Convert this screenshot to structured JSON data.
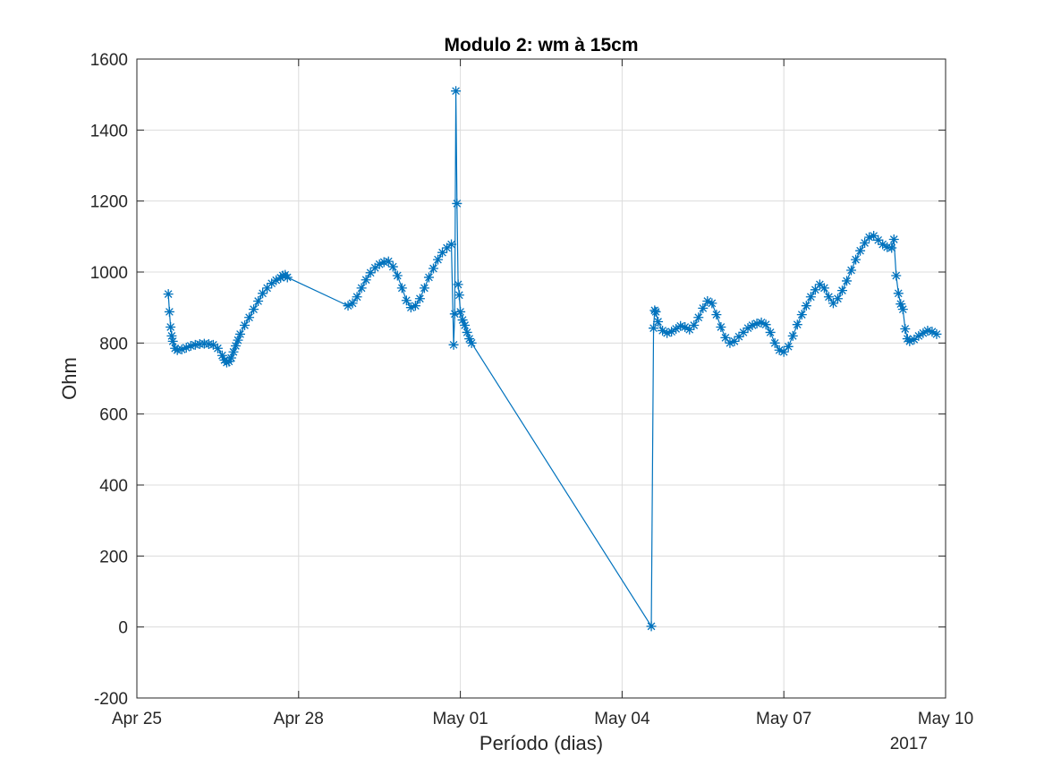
{
  "chart_data": {
    "type": "line",
    "title": "Modulo 2: wm à 15cm",
    "xlabel": "Período (dias)",
    "ylabel": "Ohm",
    "x_year_label": "2017",
    "x_axis_type": "date",
    "xlim": [
      "2017-04-25",
      "2017-05-10"
    ],
    "ylim": [
      -200,
      1600
    ],
    "x_ticks": [
      {
        "date": "2017-04-25",
        "label": "Apr 25"
      },
      {
        "date": "2017-04-28",
        "label": "Apr 28"
      },
      {
        "date": "2017-05-01",
        "label": "May 01"
      },
      {
        "date": "2017-05-04",
        "label": "May 04"
      },
      {
        "date": "2017-05-07",
        "label": "May 07"
      },
      {
        "date": "2017-05-10",
        "label": "May 10"
      }
    ],
    "y_ticks": [
      -200,
      0,
      200,
      400,
      600,
      800,
      1000,
      1200,
      1400,
      1600
    ],
    "grid": true,
    "marker": "asterisk",
    "series_color": "#0072BD",
    "series": [
      {
        "points": [
          [
            "2017-04-25 14:00",
            938
          ],
          [
            "2017-04-25 14:30",
            888
          ],
          [
            "2017-04-25 15:00",
            845
          ],
          [
            "2017-04-25 15:30",
            820
          ],
          [
            "2017-04-25 16:00",
            805
          ],
          [
            "2017-04-25 17:00",
            785
          ],
          [
            "2017-04-25 18:00",
            780
          ],
          [
            "2017-04-25 20:00",
            782
          ],
          [
            "2017-04-25 22:00",
            787
          ],
          [
            "2017-04-26 00:00",
            792
          ],
          [
            "2017-04-26 02:00",
            795
          ],
          [
            "2017-04-26 04:00",
            797
          ],
          [
            "2017-04-26 06:00",
            798
          ],
          [
            "2017-04-26 08:00",
            797
          ],
          [
            "2017-04-26 10:00",
            795
          ],
          [
            "2017-04-26 12:00",
            785
          ],
          [
            "2017-04-26 14:00",
            765
          ],
          [
            "2017-04-26 15:00",
            752
          ],
          [
            "2017-04-26 16:00",
            745
          ],
          [
            "2017-04-26 17:00",
            748
          ],
          [
            "2017-04-26 18:00",
            758
          ],
          [
            "2017-04-26 19:00",
            775
          ],
          [
            "2017-04-26 20:00",
            792
          ],
          [
            "2017-04-26 21:00",
            808
          ],
          [
            "2017-04-26 22:00",
            825
          ],
          [
            "2017-04-27 00:00",
            850
          ],
          [
            "2017-04-27 02:00",
            872
          ],
          [
            "2017-04-27 04:00",
            895
          ],
          [
            "2017-04-27 06:00",
            918
          ],
          [
            "2017-04-27 08:00",
            940
          ],
          [
            "2017-04-27 10:00",
            955
          ],
          [
            "2017-04-27 12:00",
            968
          ],
          [
            "2017-04-27 14:00",
            977
          ],
          [
            "2017-04-27 16:00",
            984
          ],
          [
            "2017-04-27 17:00",
            990
          ],
          [
            "2017-04-27 18:00",
            992
          ],
          [
            "2017-04-27 19:00",
            985
          ],
          [
            "2017-04-28 22:00",
            905
          ],
          [
            "2017-04-29 00:00",
            912
          ],
          [
            "2017-04-29 02:00",
            930
          ],
          [
            "2017-04-29 04:00",
            955
          ],
          [
            "2017-04-29 06:00",
            978
          ],
          [
            "2017-04-29 08:00",
            998
          ],
          [
            "2017-04-29 10:00",
            1012
          ],
          [
            "2017-04-29 12:00",
            1022
          ],
          [
            "2017-04-29 14:00",
            1028
          ],
          [
            "2017-04-29 16:00",
            1030
          ],
          [
            "2017-04-29 18:00",
            1015
          ],
          [
            "2017-04-29 20:00",
            990
          ],
          [
            "2017-04-29 22:00",
            955
          ],
          [
            "2017-04-30 00:00",
            920
          ],
          [
            "2017-04-30 02:00",
            900
          ],
          [
            "2017-04-30 04:00",
            905
          ],
          [
            "2017-04-30 06:00",
            925
          ],
          [
            "2017-04-30 08:00",
            955
          ],
          [
            "2017-04-30 10:00",
            985
          ],
          [
            "2017-04-30 12:00",
            1010
          ],
          [
            "2017-04-30 14:00",
            1035
          ],
          [
            "2017-04-30 16:00",
            1055
          ],
          [
            "2017-04-30 18:00",
            1068
          ],
          [
            "2017-04-30 20:00",
            1078
          ],
          [
            "2017-04-30 21:00",
            795
          ],
          [
            "2017-04-30 21:30",
            882
          ],
          [
            "2017-04-30 22:00",
            1510
          ],
          [
            "2017-04-30 22:30",
            1193
          ],
          [
            "2017-04-30 23:00",
            965
          ],
          [
            "2017-04-30 23:30",
            935
          ],
          [
            "2017-05-01 00:00",
            888
          ],
          [
            "2017-05-01 01:00",
            865
          ],
          [
            "2017-05-01 02:00",
            850
          ],
          [
            "2017-05-01 03:00",
            830
          ],
          [
            "2017-05-01 04:00",
            812
          ],
          [
            "2017-05-01 05:00",
            800
          ],
          [
            "2017-05-04 13:00",
            2
          ],
          [
            "2017-05-04 14:00",
            842
          ],
          [
            "2017-05-04 14:30",
            892
          ],
          [
            "2017-05-04 15:00",
            888
          ],
          [
            "2017-05-04 16:00",
            860
          ],
          [
            "2017-05-04 18:00",
            835
          ],
          [
            "2017-05-04 20:00",
            828
          ],
          [
            "2017-05-04 22:00",
            832
          ],
          [
            "2017-05-05 00:00",
            840
          ],
          [
            "2017-05-05 02:00",
            848
          ],
          [
            "2017-05-05 04:00",
            845
          ],
          [
            "2017-05-05 06:00",
            838
          ],
          [
            "2017-05-05 08:00",
            850
          ],
          [
            "2017-05-05 10:00",
            872
          ],
          [
            "2017-05-05 12:00",
            898
          ],
          [
            "2017-05-05 14:00",
            918
          ],
          [
            "2017-05-05 16:00",
            912
          ],
          [
            "2017-05-05 18:00",
            880
          ],
          [
            "2017-05-05 20:00",
            845
          ],
          [
            "2017-05-05 22:00",
            815
          ],
          [
            "2017-05-06 00:00",
            800
          ],
          [
            "2017-05-06 02:00",
            805
          ],
          [
            "2017-05-06 04:00",
            818
          ],
          [
            "2017-05-06 06:00",
            830
          ],
          [
            "2017-05-06 08:00",
            842
          ],
          [
            "2017-05-06 10:00",
            850
          ],
          [
            "2017-05-06 12:00",
            855
          ],
          [
            "2017-05-06 14:00",
            858
          ],
          [
            "2017-05-06 16:00",
            852
          ],
          [
            "2017-05-06 18:00",
            830
          ],
          [
            "2017-05-06 20:00",
            800
          ],
          [
            "2017-05-06 22:00",
            780
          ],
          [
            "2017-05-07 00:00",
            775
          ],
          [
            "2017-05-07 02:00",
            790
          ],
          [
            "2017-05-07 04:00",
            820
          ],
          [
            "2017-05-07 06:00",
            852
          ],
          [
            "2017-05-07 08:00",
            880
          ],
          [
            "2017-05-07 10:00",
            905
          ],
          [
            "2017-05-07 12:00",
            930
          ],
          [
            "2017-05-07 14:00",
            950
          ],
          [
            "2017-05-07 16:00",
            965
          ],
          [
            "2017-05-07 18:00",
            955
          ],
          [
            "2017-05-07 20:00",
            930
          ],
          [
            "2017-05-07 22:00",
            912
          ],
          [
            "2017-05-08 00:00",
            925
          ],
          [
            "2017-05-08 02:00",
            948
          ],
          [
            "2017-05-08 04:00",
            975
          ],
          [
            "2017-05-08 06:00",
            1005
          ],
          [
            "2017-05-08 08:00",
            1035
          ],
          [
            "2017-05-08 10:00",
            1060
          ],
          [
            "2017-05-08 12:00",
            1082
          ],
          [
            "2017-05-08 14:00",
            1098
          ],
          [
            "2017-05-08 16:00",
            1102
          ],
          [
            "2017-05-08 18:00",
            1090
          ],
          [
            "2017-05-08 20:00",
            1078
          ],
          [
            "2017-05-08 22:00",
            1070
          ],
          [
            "2017-05-09 00:00",
            1068
          ],
          [
            "2017-05-09 01:00",
            1092
          ],
          [
            "2017-05-09 02:00",
            990
          ],
          [
            "2017-05-09 03:00",
            940
          ],
          [
            "2017-05-09 04:00",
            910
          ],
          [
            "2017-05-09 05:00",
            895
          ],
          [
            "2017-05-09 06:00",
            840
          ],
          [
            "2017-05-09 07:00",
            812
          ],
          [
            "2017-05-09 08:00",
            805
          ],
          [
            "2017-05-09 10:00",
            810
          ],
          [
            "2017-05-09 12:00",
            820
          ],
          [
            "2017-05-09 14:00",
            828
          ],
          [
            "2017-05-09 16:00",
            835
          ],
          [
            "2017-05-09 18:00",
            832
          ],
          [
            "2017-05-09 20:00",
            825
          ]
        ]
      }
    ]
  }
}
